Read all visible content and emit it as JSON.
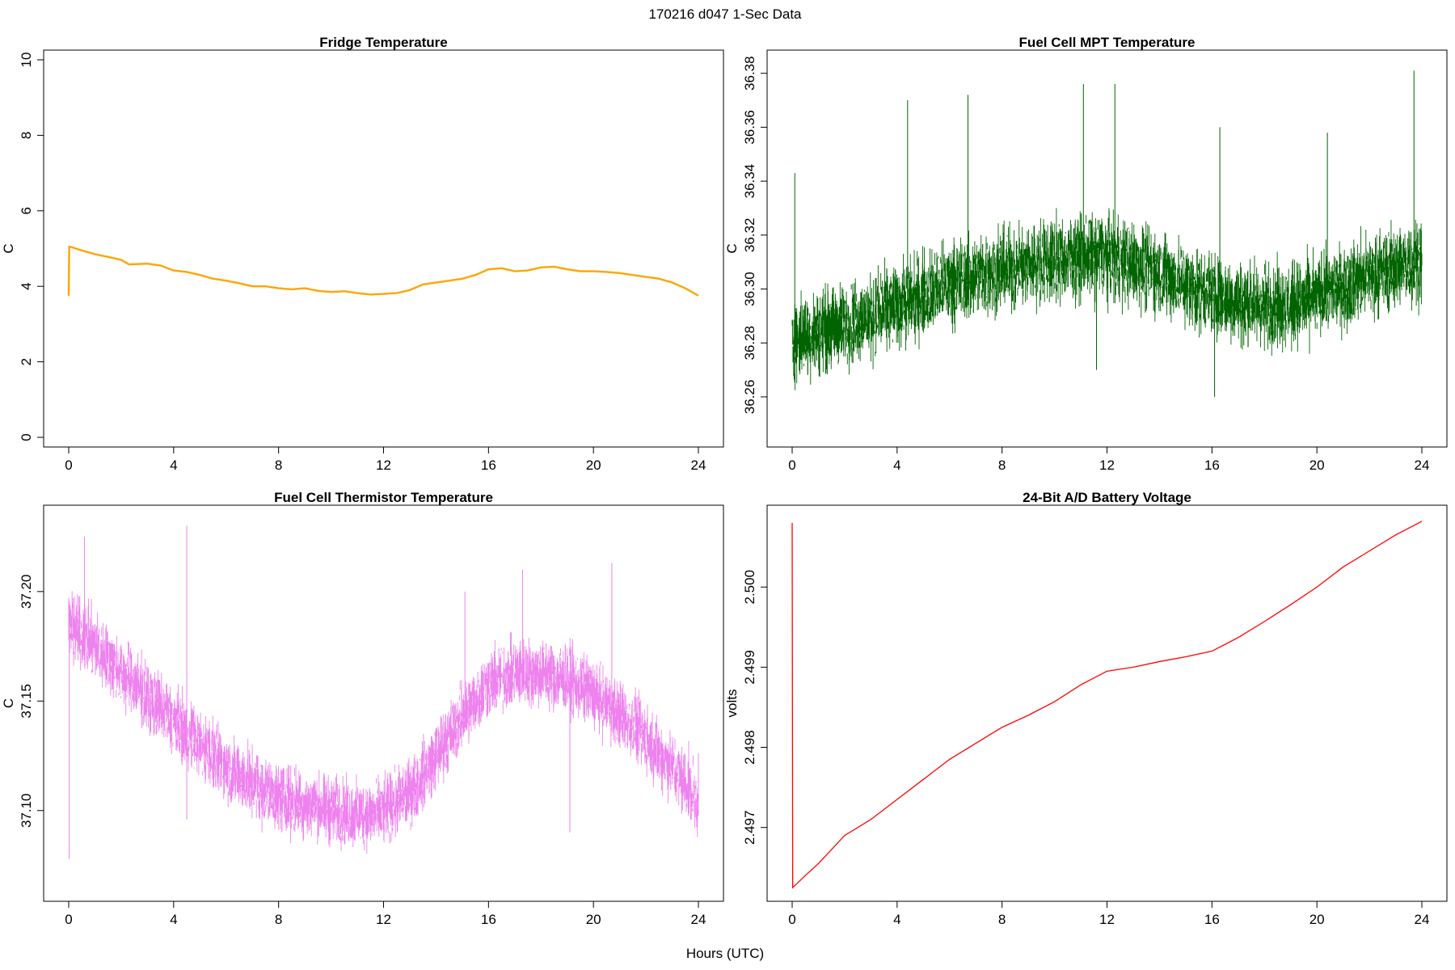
{
  "figure": {
    "main_title": "170216   d047   1-Sec Data",
    "xlabel": "Hours (UTC)"
  },
  "chart_data": [
    {
      "type": "line",
      "title": "Fridge Temperature",
      "xlabel": "",
      "ylabel": "C",
      "xlim": [
        0,
        24
      ],
      "ylim": [
        0,
        10
      ],
      "xticks": [
        0,
        4,
        8,
        12,
        16,
        20,
        24
      ],
      "xtick_labels": [
        "0",
        "4",
        "8",
        "12",
        "16",
        "20",
        "24"
      ],
      "yticks": [
        0,
        2,
        4,
        6,
        8,
        10
      ],
      "ytick_labels": [
        "0",
        "2",
        "4",
        "6",
        "8",
        "10"
      ],
      "color": "#FFA500",
      "noise_amplitude": 0.03,
      "series": [
        {
          "name": "Fridge Temperature",
          "x": [
            0,
            0.02,
            0.05,
            0.5,
            1.0,
            1.5,
            2.0,
            2.3,
            3.0,
            3.5,
            4.0,
            4.5,
            5.0,
            5.5,
            6.0,
            6.5,
            7.0,
            7.5,
            8.0,
            8.5,
            9.0,
            9.5,
            10.0,
            10.5,
            11.0,
            11.5,
            12.0,
            12.5,
            13.0,
            13.5,
            14.0,
            14.5,
            15.0,
            15.5,
            16.0,
            16.5,
            17.0,
            17.5,
            18.0,
            18.5,
            19.0,
            19.5,
            20.0,
            20.5,
            21.0,
            21.5,
            22.0,
            22.5,
            23.0,
            23.5,
            24.0
          ],
          "y": [
            3.75,
            5.05,
            5.05,
            4.95,
            4.85,
            4.78,
            4.7,
            4.58,
            4.6,
            4.55,
            4.42,
            4.38,
            4.3,
            4.2,
            4.15,
            4.08,
            4.0,
            4.0,
            3.95,
            3.92,
            3.95,
            3.88,
            3.85,
            3.87,
            3.82,
            3.78,
            3.8,
            3.82,
            3.9,
            4.05,
            4.1,
            4.15,
            4.2,
            4.3,
            4.45,
            4.48,
            4.4,
            4.42,
            4.5,
            4.52,
            4.45,
            4.4,
            4.4,
            4.38,
            4.35,
            4.3,
            4.25,
            4.2,
            4.1,
            3.95,
            3.75
          ]
        }
      ]
    },
    {
      "type": "line",
      "title": "Fuel Cell MPT Temperature",
      "xlabel": "",
      "ylabel": "C",
      "xlim": [
        0,
        24
      ],
      "ylim": [
        36.245,
        36.385
      ],
      "xticks": [
        0,
        4,
        8,
        12,
        16,
        20,
        24
      ],
      "xtick_labels": [
        "0",
        "4",
        "8",
        "12",
        "16",
        "20",
        "24"
      ],
      "yticks": [
        36.26,
        36.28,
        36.3,
        36.32,
        36.34,
        36.36,
        36.38
      ],
      "ytick_labels": [
        "36.26",
        "36.28",
        "36.30",
        "36.32",
        "36.34",
        "36.36",
        "36.38"
      ],
      "color": "#006400",
      "noise_amplitude": 0.022,
      "spikes": [
        {
          "x": 0.1,
          "y": 36.343
        },
        {
          "x": 4.4,
          "y": 36.37
        },
        {
          "x": 6.7,
          "y": 36.372
        },
        {
          "x": 11.1,
          "y": 36.376
        },
        {
          "x": 12.3,
          "y": 36.376
        },
        {
          "x": 16.3,
          "y": 36.36
        },
        {
          "x": 20.4,
          "y": 36.358
        },
        {
          "x": 23.7,
          "y": 36.381
        },
        {
          "x": 11.6,
          "y": 36.27
        },
        {
          "x": 16.1,
          "y": 36.26
        }
      ],
      "series": [
        {
          "name": "Fuel Cell MPT Temperature (center)",
          "x": [
            0,
            1,
            2,
            3,
            4,
            5,
            6,
            7,
            8,
            9,
            10,
            11,
            12,
            13,
            14,
            15,
            16,
            17,
            18,
            19,
            20,
            21,
            22,
            23,
            24
          ],
          "y": [
            36.281,
            36.284,
            36.287,
            36.29,
            36.294,
            36.298,
            36.302,
            36.305,
            36.307,
            36.309,
            36.311,
            36.312,
            36.312,
            36.309,
            36.306,
            36.302,
            36.298,
            36.295,
            36.294,
            36.294,
            36.297,
            36.301,
            36.305,
            36.308,
            36.311
          ]
        }
      ]
    },
    {
      "type": "line",
      "title": "Fuel Cell Thermistor Temperature",
      "xlabel": "",
      "ylabel": "C",
      "xlim": [
        0,
        24
      ],
      "ylim": [
        37.063,
        37.235
      ],
      "xticks": [
        0,
        4,
        8,
        12,
        16,
        20,
        24
      ],
      "xtick_labels": [
        "0",
        "4",
        "8",
        "12",
        "16",
        "20",
        "24"
      ],
      "yticks": [
        37.1,
        37.15,
        37.2
      ],
      "ytick_labels": [
        "37.10",
        "37.15",
        "37.20"
      ],
      "color": "#EE82EE",
      "noise_amplitude": 0.022,
      "spikes": [
        {
          "x": 0.02,
          "y": 37.078
        },
        {
          "x": 0.6,
          "y": 37.225
        },
        {
          "x": 4.5,
          "y": 37.23
        },
        {
          "x": 15.1,
          "y": 37.2
        },
        {
          "x": 17.3,
          "y": 37.21
        },
        {
          "x": 20.7,
          "y": 37.213
        },
        {
          "x": 4.5,
          "y": 37.096
        },
        {
          "x": 19.1,
          "y": 37.09
        }
      ],
      "series": [
        {
          "name": "Fuel Cell Thermistor Temperature (center)",
          "x": [
            0,
            1,
            2,
            3,
            4,
            5,
            6,
            7,
            8,
            9,
            10,
            11,
            12,
            13,
            14,
            15,
            16,
            17,
            18,
            19,
            20,
            21,
            22,
            23,
            24
          ],
          "y": [
            37.185,
            37.175,
            37.163,
            37.152,
            37.141,
            37.13,
            37.12,
            37.112,
            37.106,
            37.103,
            37.1,
            37.098,
            37.099,
            37.108,
            37.125,
            37.143,
            37.158,
            37.163,
            37.163,
            37.16,
            37.153,
            37.144,
            37.133,
            37.12,
            37.105
          ]
        }
      ]
    },
    {
      "type": "line",
      "title": "24-Bit A/D Battery Voltage",
      "xlabel": "",
      "ylabel": "volts",
      "xlim": [
        0,
        24
      ],
      "ylim": [
        2.4962,
        2.5009
      ],
      "xticks": [
        0,
        4,
        8,
        12,
        16,
        20,
        24
      ],
      "xtick_labels": [
        "0",
        "4",
        "8",
        "12",
        "16",
        "20",
        "24"
      ],
      "yticks": [
        2.497,
        2.498,
        2.499,
        2.5
      ],
      "ytick_labels": [
        "2.497",
        "2.498",
        "2.499",
        "2.500"
      ],
      "color": "#FF0000",
      "noise_amplitude": 0,
      "series": [
        {
          "name": "Battery Voltage",
          "x": [
            0,
            0.02,
            0.5,
            1,
            2,
            3,
            4,
            5,
            6,
            7,
            8,
            9,
            10,
            11,
            12,
            13,
            14,
            15,
            16,
            17,
            18,
            19,
            20,
            21,
            22,
            23,
            24
          ],
          "y": [
            2.5008,
            2.49625,
            2.4964,
            2.49655,
            2.4969,
            2.4971,
            2.49735,
            2.4976,
            2.49785,
            2.49805,
            2.49825,
            2.4984,
            2.49857,
            2.49878,
            2.49895,
            2.499,
            2.49907,
            2.49913,
            2.4992,
            2.49937,
            2.49957,
            2.49978,
            2.5,
            2.50025,
            2.50045,
            2.50065,
            2.50082
          ]
        }
      ]
    }
  ]
}
